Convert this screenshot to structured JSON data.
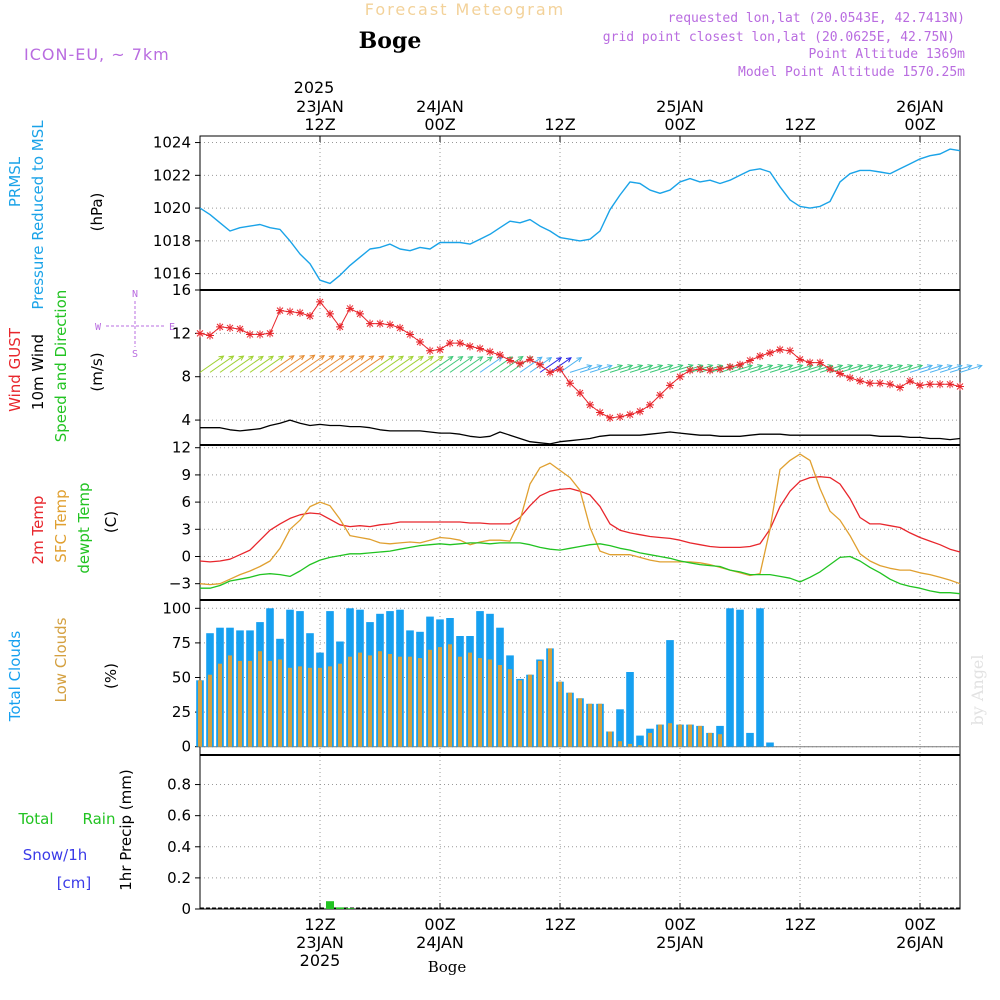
{
  "header": {
    "title_faded": "Forecast Meteogram",
    "location": "Boge",
    "model": "ICON-EU, ~ 7km",
    "requested": "requested lon,lat (20.0543E, 42.7413N)",
    "gridpoint": "grid point closest lon,lat (20.0625E, 42.75N)",
    "point_alt": "Point Altitude 1369m",
    "model_alt": "Model Point Altitude 1570.25m"
  },
  "time_axis": {
    "top_year": "2025",
    "ticks": [
      {
        "hour": 12,
        "top": [
          "23JAN",
          "12Z"
        ],
        "bottom": [
          "12Z",
          "23JAN",
          "2025"
        ]
      },
      {
        "hour": 24,
        "top": [
          "24JAN",
          "00Z"
        ],
        "bottom": [
          "00Z",
          "24JAN"
        ]
      },
      {
        "hour": 36,
        "top": [
          "12Z"
        ],
        "bottom": [
          "12Z"
        ]
      },
      {
        "hour": 48,
        "top": [
          "25JAN",
          "00Z"
        ],
        "bottom": [
          "00Z",
          "25JAN"
        ]
      },
      {
        "hour": 60,
        "top": [
          "12Z"
        ],
        "bottom": [
          "12Z"
        ]
      },
      {
        "hour": 72,
        "top": [
          "26JAN",
          "00Z"
        ],
        "bottom": [
          "00Z",
          "26JAN"
        ]
      }
    ],
    "bottom_label": "Boge"
  },
  "watermark": "by Angel",
  "labels": {
    "prmsl_1": "PRMSL",
    "prmsl_2": "Pressure Reduced to MSL",
    "prmsl_unit": "(hPa)",
    "wind_1": "Wind GUST",
    "wind_2": "10m Wind",
    "wind_3": "Speed and Direction",
    "wind_unit": "(m/s)",
    "compass_n": "N",
    "compass_s": "S",
    "compass_w": "W",
    "compass_e": "E",
    "temp_1": "2m Temp",
    "temp_2": "SFC Temp",
    "temp_3": "dewpt Temp",
    "temp_unit": "(C)",
    "cloud_1": "Total Clouds",
    "cloud_2": "Low Clouds",
    "cloud_unit": "(%)",
    "precip_total": "Total",
    "precip_rain": "Rain",
    "precip_snow": "Snow/1h",
    "precip_cm": "[cm]",
    "precip_axis": "1hr Precip (mm)"
  },
  "colors": {
    "pressure": "#1aa3e8",
    "gust": "#e8262c",
    "wind": "#000000",
    "t2m": "#e8262c",
    "tsfc": "#e0a030",
    "dewpt": "#22c322",
    "total_cloud": "#16a0f0",
    "low_cloud": "#d4a040",
    "rain": "#22c322",
    "snow": "#3a3ae8",
    "header_purple": "#b96ce0",
    "faded_title": "#f3d29a"
  },
  "chart_data": [
    {
      "type": "line",
      "title": "PRMSL",
      "ylabel": "(hPa)",
      "ylim": [
        1015,
        1024.4
      ],
      "yticks": [
        1016,
        1018,
        1020,
        1022,
        1024
      ],
      "x_unit": "hours from 23JAN 00Z",
      "x": [
        0,
        1,
        2,
        3,
        4,
        5,
        6,
        7,
        8,
        9,
        10,
        11,
        12,
        13,
        14,
        15,
        16,
        17,
        18,
        19,
        20,
        21,
        22,
        23,
        24,
        25,
        26,
        27,
        28,
        29,
        30,
        31,
        32,
        33,
        34,
        35,
        36,
        37,
        38,
        39,
        40,
        41,
        42,
        43,
        44,
        45,
        46,
        47,
        48,
        49,
        50,
        51,
        52,
        53,
        54,
        55,
        56,
        57,
        58,
        59,
        60,
        61,
        62,
        63,
        64,
        65,
        66,
        67,
        68,
        69,
        70,
        71,
        72,
        73,
        74,
        75,
        76
      ],
      "series": [
        {
          "values": [
            1020,
            1019.6,
            1019.1,
            1018.6,
            1018.8,
            1018.9,
            1019,
            1018.8,
            1018.7,
            1018,
            1017.2,
            1016.6,
            1015.6,
            1015.4,
            1015.9,
            1016.5,
            1017,
            1017.5,
            1017.6,
            1017.8,
            1017.5,
            1017.4,
            1017.6,
            1017.5,
            1017.9,
            1017.9,
            1017.9,
            1017.8,
            1018.1,
            1018.4,
            1018.8,
            1019.2,
            1019.1,
            1019.3,
            1018.9,
            1018.6,
            1018.2,
            1018.1,
            1018.0,
            1018.1,
            1018.6,
            1019.9,
            1020.8,
            1021.6,
            1021.5,
            1021.1,
            1020.9,
            1021.1,
            1021.6,
            1021.8,
            1021.6,
            1021.7,
            1021.5,
            1021.7,
            1022,
            1022.3,
            1022.4,
            1022.2,
            1021.3,
            1020.5,
            1020.1,
            1020,
            1020.1,
            1020.4,
            1021.6,
            1022.1,
            1022.3,
            1022.3,
            1022.2,
            1022.1,
            1022.4,
            1022.7,
            1023,
            1023.2,
            1023.3,
            1023.6,
            1023.5
          ]
        }
      ]
    },
    {
      "type": "line",
      "title": "Wind GUST / 10m Wind Speed and Direction",
      "ylabel": "(m/s)",
      "ylim": [
        1.7,
        16
      ],
      "yticks": [
        4,
        8,
        12,
        16
      ],
      "series": [
        {
          "name": "Wind GUST",
          "values": [
            12.0,
            11.8,
            12.6,
            12.5,
            12.4,
            11.9,
            11.9,
            12.0,
            14.1,
            14.0,
            13.9,
            13.6,
            14.9,
            13.8,
            12.6,
            14.3,
            13.8,
            12.9,
            12.9,
            12.8,
            12.5,
            11.9,
            11.2,
            10.4,
            10.5,
            11.1,
            11.1,
            10.8,
            10.6,
            10.3,
            10.0,
            9.5,
            9.2,
            9.6,
            9.1,
            8.4,
            8.7,
            7.4,
            6.5,
            5.4,
            4.7,
            4.2,
            4.3,
            4.5,
            4.8,
            5.4,
            6.3,
            7.2,
            8.0,
            8.6,
            8.7,
            8.6,
            8.7,
            8.9,
            9.1,
            9.5,
            9.9,
            10.2,
            10.5,
            10.4,
            9.6,
            9.3,
            9.3,
            8.7,
            8.3,
            7.9,
            7.6,
            7.4,
            7.4,
            7.3,
            7.0,
            7.6,
            7.2,
            7.3,
            7.3,
            7.3,
            7.1
          ]
        },
        {
          "name": "10m Wind",
          "values": [
            3.3,
            3.3,
            3.3,
            3.1,
            3.0,
            3.1,
            3.2,
            3.5,
            3.7,
            4.0,
            3.7,
            3.5,
            3.6,
            3.5,
            3.5,
            3.4,
            3.4,
            3.3,
            3.1,
            3.0,
            3.0,
            3.0,
            3.0,
            2.9,
            2.8,
            2.8,
            2.7,
            2.5,
            2.4,
            2.5,
            2.9,
            2.6,
            2.3,
            2.0,
            1.9,
            1.8,
            2.0,
            2.1,
            2.2,
            2.3,
            2.5,
            2.6,
            2.6,
            2.6,
            2.6,
            2.7,
            2.8,
            2.9,
            2.8,
            2.7,
            2.6,
            2.6,
            2.5,
            2.5,
            2.5,
            2.6,
            2.7,
            2.7,
            2.7,
            2.6,
            2.6,
            2.6,
            2.6,
            2.6,
            2.6,
            2.6,
            2.6,
            2.6,
            2.5,
            2.5,
            2.5,
            2.4,
            2.4,
            2.3,
            2.3,
            2.2,
            2.3
          ]
        }
      ],
      "direction_arrows": "SW-to-NE pointing arrows drawn along the 8 m/s level, coloured by wind speed"
    },
    {
      "type": "line",
      "title": "2m Temp / SFC Temp / dewpt Temp",
      "ylabel": "(C)",
      "ylim": [
        -4.8,
        12.3
      ],
      "yticks": [
        -3,
        0,
        3,
        6,
        9,
        12
      ],
      "series": [
        {
          "name": "2m Temp",
          "values": [
            -0.5,
            -0.6,
            -0.5,
            -0.3,
            0.2,
            0.7,
            1.8,
            2.9,
            3.6,
            4.2,
            4.6,
            4.8,
            4.7,
            4.1,
            3.5,
            3.3,
            3.4,
            3.3,
            3.5,
            3.6,
            3.8,
            3.8,
            3.8,
            3.8,
            3.8,
            3.8,
            3.8,
            3.7,
            3.7,
            3.6,
            3.6,
            3.6,
            4.3,
            5.6,
            6.7,
            7.2,
            7.4,
            7.5,
            7.2,
            6.8,
            5.5,
            3.6,
            2.9,
            2.6,
            2.4,
            2.2,
            2.1,
            2.0,
            1.8,
            1.5,
            1.3,
            1.1,
            1.0,
            1.0,
            1.0,
            1.1,
            1.4,
            3.0,
            5.5,
            7.2,
            8.3,
            8.7,
            8.8,
            8.7,
            8.0,
            6.4,
            4.3,
            3.6,
            3.6,
            3.4,
            3.2,
            2.6,
            2.1,
            1.7,
            1.3,
            0.8,
            0.5
          ]
        },
        {
          "name": "SFC Temp",
          "values": [
            -3.0,
            -3.1,
            -3.0,
            -2.5,
            -2.0,
            -1.6,
            -1.1,
            -0.5,
            0.9,
            3.0,
            4.0,
            5.5,
            6.0,
            5.6,
            4.1,
            2.3,
            2.1,
            1.9,
            1.5,
            1.4,
            1.5,
            1.6,
            1.5,
            1.8,
            2.1,
            2.0,
            1.8,
            1.3,
            1.6,
            1.8,
            1.8,
            1.7,
            4.0,
            8.0,
            9.8,
            10.3,
            9.5,
            8.7,
            7.3,
            3.2,
            0.6,
            0.2,
            0.2,
            0.2,
            -0.1,
            -0.4,
            -0.6,
            -0.6,
            -0.6,
            -0.6,
            -0.7,
            -0.9,
            -1.2,
            -1.5,
            -1.8,
            -2.1,
            -1.9,
            3.0,
            9.6,
            10.6,
            11.3,
            10.6,
            7.5,
            5.0,
            4.0,
            2.3,
            0.3,
            -0.5,
            -1.0,
            -1.3,
            -1.5,
            -1.5,
            -1.8,
            -2.0,
            -2.3,
            -2.6,
            -3.0
          ]
        },
        {
          "name": "dewpt Temp",
          "values": [
            -3.5,
            -3.5,
            -3.2,
            -2.7,
            -2.5,
            -2.3,
            -2.0,
            -1.9,
            -2.0,
            -2.2,
            -1.6,
            -0.9,
            -0.4,
            -0.1,
            0.1,
            0.3,
            0.3,
            0.4,
            0.5,
            0.6,
            0.8,
            1.0,
            1.2,
            1.3,
            1.4,
            1.3,
            1.4,
            1.5,
            1.5,
            1.4,
            1.5,
            1.5,
            1.5,
            1.3,
            1.0,
            0.8,
            0.7,
            0.9,
            1.1,
            1.3,
            1.4,
            1.2,
            0.9,
            0.7,
            0.4,
            0.2,
            0.0,
            -0.2,
            -0.5,
            -0.7,
            -0.9,
            -1.0,
            -1.1,
            -1.5,
            -1.7,
            -2.0,
            -2.0,
            -2.0,
            -2.2,
            -2.4,
            -2.8,
            -2.3,
            -1.7,
            -0.9,
            -0.1,
            0.0,
            -0.5,
            -1.2,
            -1.8,
            -2.5,
            -3.0,
            -3.3,
            -3.5,
            -3.8,
            -4.0,
            -4.0,
            -4.1
          ]
        }
      ]
    },
    {
      "type": "bar",
      "title": "Total Clouds / Low Clouds",
      "ylabel": "(%)",
      "ylim": [
        -6,
        106
      ],
      "yticks": [
        0,
        25,
        50,
        75,
        100
      ],
      "series": [
        {
          "name": "Total Clouds",
          "values": [
            48,
            82,
            86,
            86,
            84,
            84,
            90,
            100,
            78,
            99,
            98,
            82,
            68,
            98,
            76,
            100,
            99,
            90,
            96,
            98,
            99,
            84,
            83,
            94,
            92,
            93,
            80,
            80,
            98,
            96,
            86,
            66,
            49,
            52,
            63,
            71,
            47,
            39,
            35,
            31,
            31,
            11,
            27,
            54,
            8,
            13,
            16,
            77,
            16,
            16,
            15,
            10,
            15,
            100,
            99,
            10,
            100,
            3,
            0,
            0,
            0,
            0,
            0,
            0,
            0,
            0,
            0,
            0,
            0,
            0,
            0,
            0,
            0,
            0,
            0,
            0,
            0
          ]
        },
        {
          "name": "Low Clouds",
          "values": [
            48,
            52,
            60,
            66,
            62,
            62,
            69,
            62,
            63,
            57,
            58,
            57,
            57,
            58,
            60,
            65,
            68,
            66,
            69,
            67,
            65,
            65,
            64,
            70,
            72,
            74,
            65,
            68,
            64,
            63,
            59,
            56,
            48,
            52,
            62,
            71,
            47,
            39,
            35,
            31,
            31,
            11,
            4,
            2,
            1,
            10,
            16,
            17,
            16,
            16,
            15,
            10,
            9,
            0,
            0,
            0,
            0,
            0,
            0,
            0,
            0,
            0,
            0,
            0,
            0,
            0,
            0,
            0,
            0,
            0,
            0,
            0,
            0,
            0,
            0,
            0,
            0
          ]
        }
      ]
    },
    {
      "type": "bar",
      "title": "1hr Precip",
      "ylabel": "1hr Precip (mm)",
      "ylim": [
        0,
        0.99
      ],
      "yticks": [
        0,
        0.2,
        0.4,
        0.6,
        0.8
      ],
      "series": [
        {
          "name": "Total Rain",
          "values": [
            0,
            0,
            0,
            0,
            0,
            0,
            0,
            0,
            0,
            0,
            0,
            0,
            0,
            0.05,
            0.01,
            0.005,
            0,
            0,
            0,
            0,
            0,
            0,
            0,
            0,
            0,
            0,
            0,
            0,
            0,
            0,
            0,
            0,
            0,
            0,
            0,
            0,
            0,
            0,
            0,
            0,
            0,
            0,
            0,
            0,
            0,
            0,
            0,
            0,
            0,
            0,
            0,
            0,
            0,
            0,
            0,
            0,
            0,
            0,
            0,
            0,
            0,
            0,
            0,
            0,
            0,
            0,
            0,
            0,
            0,
            0,
            0,
            0,
            0,
            0,
            0,
            0
          ]
        },
        {
          "name": "Snow/1h",
          "values": [
            0,
            0,
            0,
            0,
            0,
            0,
            0,
            0,
            0,
            0,
            0,
            0,
            0,
            0,
            0,
            0,
            0,
            0,
            0,
            0,
            0,
            0,
            0,
            0,
            0,
            0,
            0,
            0,
            0,
            0,
            0,
            0,
            0,
            0,
            0,
            0,
            0,
            0,
            0,
            0,
            0,
            0,
            0,
            0,
            0,
            0,
            0,
            0,
            0,
            0,
            0,
            0,
            0,
            0,
            0,
            0,
            0,
            0,
            0,
            0,
            0,
            0,
            0,
            0,
            0,
            0,
            0,
            0,
            0,
            0,
            0,
            0,
            0,
            0,
            0,
            0,
            0
          ]
        }
      ]
    }
  ]
}
